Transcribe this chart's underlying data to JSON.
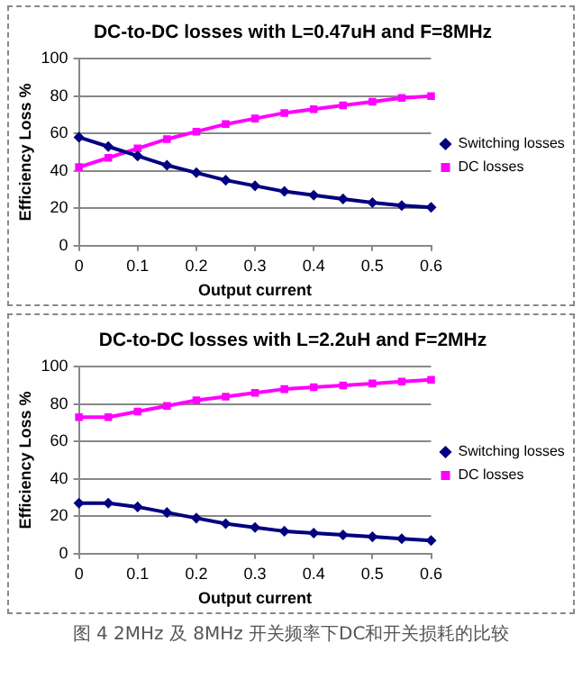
{
  "chart_data": [
    {
      "type": "line",
      "title": "DC-to-DC losses with L=0.47uH and F=8MHz",
      "xlabel": "Output current",
      "ylabel": "Efficiency Loss %",
      "x": [
        0,
        0.05,
        0.1,
        0.15,
        0.2,
        0.25,
        0.3,
        0.35,
        0.4,
        0.45,
        0.5,
        0.55,
        0.6
      ],
      "series": [
        {
          "name": "Switching losses",
          "color": "#000080",
          "marker": "diamond",
          "values": [
            58,
            53,
            48,
            43,
            39,
            35,
            32,
            29,
            27,
            25,
            23,
            21.5,
            20.5
          ]
        },
        {
          "name": "DC losses",
          "color": "#ff00ff",
          "marker": "square",
          "values": [
            42,
            47,
            52,
            57,
            61,
            65,
            68,
            71,
            73,
            75,
            77,
            79,
            80
          ]
        }
      ],
      "xlim": [
        0,
        0.6
      ],
      "xticks": [
        0,
        0.1,
        0.2,
        0.3,
        0.4,
        0.5,
        0.6
      ],
      "ylim": [
        0,
        100
      ],
      "yticks": [
        0,
        20,
        40,
        60,
        80,
        100
      ],
      "grid": "y",
      "legend": "right"
    },
    {
      "type": "line",
      "title": "DC-to-DC losses with L=2.2uH and F=2MHz",
      "xlabel": "Output current",
      "ylabel": "Efficiency Loss %",
      "x": [
        0,
        0.05,
        0.1,
        0.15,
        0.2,
        0.25,
        0.3,
        0.35,
        0.4,
        0.45,
        0.5,
        0.55,
        0.6
      ],
      "series": [
        {
          "name": "Switching losses",
          "color": "#000080",
          "marker": "diamond",
          "values": [
            27,
            27,
            25,
            22,
            19,
            16,
            14,
            12,
            11,
            10,
            9,
            8,
            7
          ]
        },
        {
          "name": "DC losses",
          "color": "#ff00ff",
          "marker": "square",
          "values": [
            73,
            73,
            76,
            79,
            82,
            84,
            86,
            88,
            89,
            90,
            91,
            92,
            93
          ]
        }
      ],
      "xlim": [
        0,
        0.6
      ],
      "xticks": [
        0,
        0.1,
        0.2,
        0.3,
        0.4,
        0.5,
        0.6
      ],
      "ylim": [
        0,
        100
      ],
      "yticks": [
        0,
        20,
        40,
        60,
        80,
        100
      ],
      "grid": "y",
      "legend": "right",
      "annotations": [
        "图 4 2MHz 及 8MHz 开关频率下DC和开关损耗的比较"
      ]
    }
  ]
}
